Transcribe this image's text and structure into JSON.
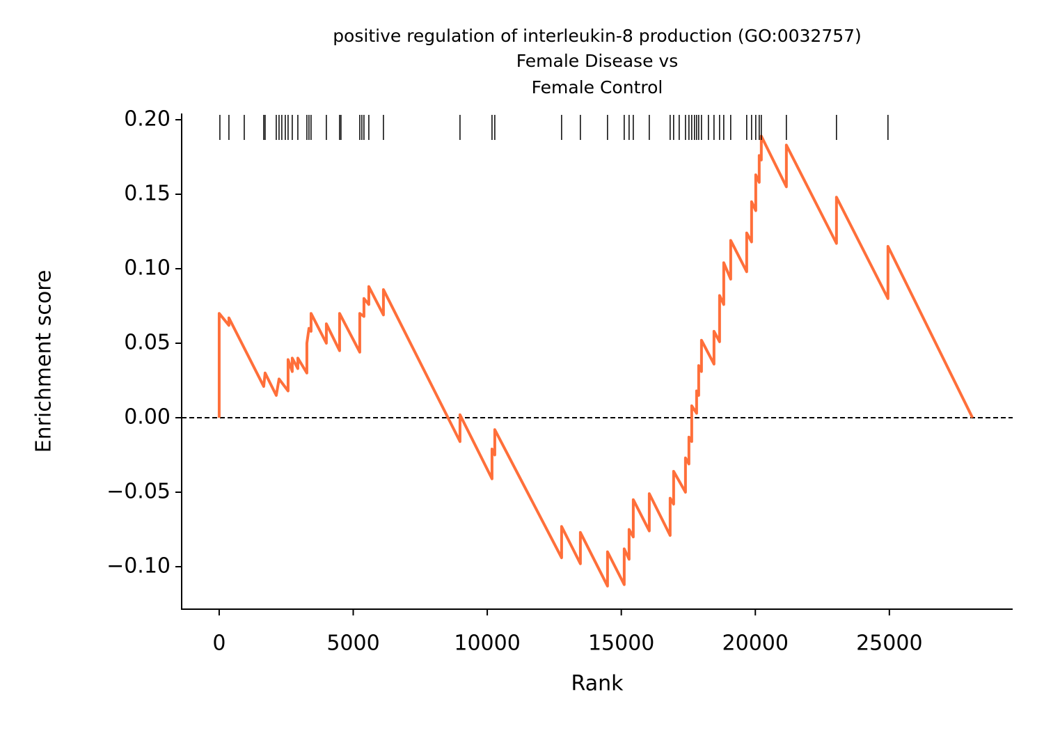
{
  "chart_data": {
    "type": "line",
    "title": [
      "positive regulation of interleukin-8 production (GO:0032757)",
      "Female Disease vs",
      "Female Control"
    ],
    "xlabel": "Rank",
    "ylabel": "Enrichment score",
    "color": "#ff6f3a",
    "x": [
      0,
      0,
      363,
      363,
      1661,
      1713,
      2129,
      2233,
      2570,
      2570,
      2726,
      2726,
      2934,
      2934,
      3271,
      3271,
      3349,
      3427,
      3427,
      3998,
      3998,
      4491,
      4491,
      5244,
      5244,
      5400,
      5400,
      5582,
      5582,
      6127,
      6127,
      8983,
      8983,
      10177,
      10177,
      10281,
      10281,
      12773,
      12773,
      13474,
      13474,
      14486,
      14486,
      15109,
      15109,
      15291,
      15291,
      15447,
      15447,
      16044,
      16044,
      16822,
      16822,
      16952,
      16952,
      17394,
      17394,
      17523,
      17523,
      17627,
      17627,
      17809,
      17809,
      17887,
      17887,
      17991,
      17991,
      18458,
      18458,
      18666,
      18666,
      18822,
      18822,
      19081,
      19081,
      19678,
      19678,
      19860,
      19860,
      20016,
      20016,
      20145,
      20145,
      20223,
      20223,
      21158,
      21158,
      23027,
      23027,
      24948,
      24948,
      28100
    ],
    "values": [
      0,
      0.07,
      0.062,
      0.067,
      0.021,
      0.03,
      0.015,
      0.026,
      0.018,
      0.039,
      0.031,
      0.04,
      0.033,
      0.04,
      0.03,
      0.05,
      0.06,
      0.058,
      0.07,
      0.05,
      0.063,
      0.045,
      0.07,
      0.044,
      0.07,
      0.068,
      0.08,
      0.076,
      0.088,
      0.069,
      0.086,
      -0.016,
      0.002,
      -0.041,
      -0.021,
      -0.025,
      -0.008,
      -0.094,
      -0.073,
      -0.098,
      -0.077,
      -0.113,
      -0.09,
      -0.112,
      -0.088,
      -0.095,
      -0.075,
      -0.08,
      -0.055,
      -0.076,
      -0.051,
      -0.079,
      -0.054,
      -0.058,
      -0.036,
      -0.05,
      -0.027,
      -0.031,
      -0.013,
      -0.016,
      0.008,
      0.003,
      0.018,
      0.015,
      0.035,
      0.031,
      0.052,
      0.036,
      0.058,
      0.051,
      0.082,
      0.076,
      0.104,
      0.093,
      0.119,
      0.098,
      0.124,
      0.118,
      0.145,
      0.139,
      0.163,
      0.158,
      0.176,
      0.173,
      0.189,
      0.155,
      0.183,
      0.117,
      0.148,
      0.08,
      0.115,
      0
    ],
    "hits": [
      26,
      363,
      935,
      1661,
      1713,
      2129,
      2233,
      2336,
      2466,
      2570,
      2726,
      2934,
      3271,
      3349,
      3427,
      3998,
      4491,
      4543,
      5244,
      5322,
      5400,
      5582,
      6127,
      8983,
      10177,
      10281,
      12773,
      13474,
      14486,
      15109,
      15291,
      15447,
      16044,
      16822,
      16952,
      17160,
      17394,
      17523,
      17627,
      17731,
      17809,
      17887,
      17991,
      18250,
      18458,
      18666,
      18822,
      19081,
      19678,
      19860,
      20016,
      20145,
      20223,
      21158,
      23027,
      24948
    ],
    "hline": 0,
    "xlim": [
      -1400,
      29600
    ],
    "ylim": [
      -0.1285,
      0.2042
    ],
    "xticks": [
      0,
      5000,
      10000,
      15000,
      20000,
      25000
    ],
    "yticks": [
      {
        "value": -0.1,
        "label": "−0.10"
      },
      {
        "value": -0.05,
        "label": "−0.05"
      },
      {
        "value": 0,
        "label": "0.00"
      },
      {
        "value": 0.05,
        "label": "0.05"
      },
      {
        "value": 0.1,
        "label": "0.10"
      },
      {
        "value": 0.15,
        "label": "0.15"
      },
      {
        "value": 0.2,
        "label": "0.20"
      }
    ]
  }
}
